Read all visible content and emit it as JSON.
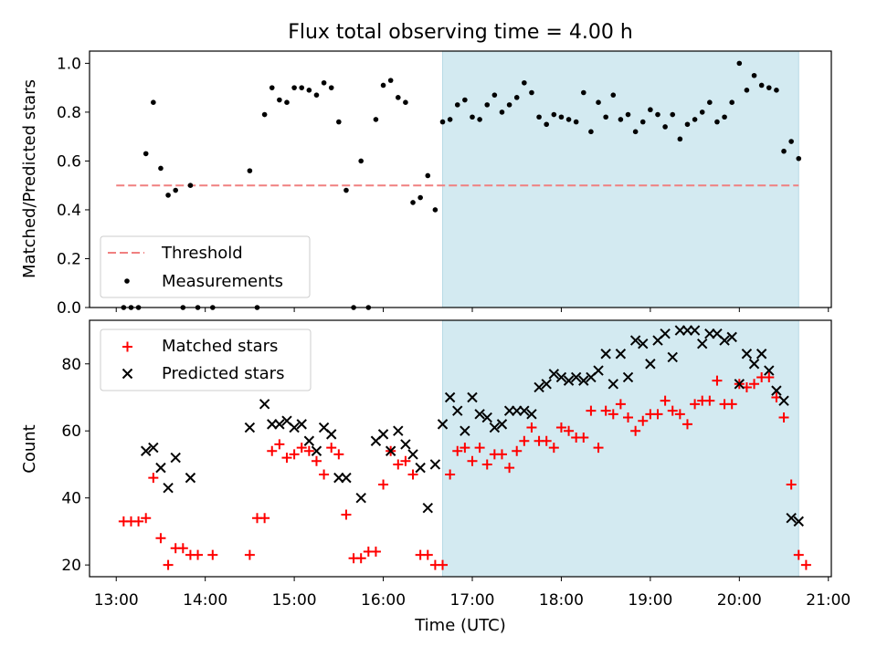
{
  "chart_data": [
    {
      "type": "scatter",
      "title": "Flux total observing time = 4.00 h",
      "xlabel": "",
      "ylabel": "Matched/Predicted stars",
      "xlim": [
        "12:42",
        "21:02"
      ],
      "ylim": [
        0,
        1.05
      ],
      "yticks": [
        "0.0",
        "0.2",
        "0.4",
        "0.6",
        "0.8",
        "1.0"
      ],
      "shaded_region": [
        "16:40",
        "20:40"
      ],
      "shade_color": "#d3eaf1",
      "legend_position": "lower-left",
      "threshold": {
        "name": "Threshold",
        "value": 0.5,
        "color": "#f08080",
        "style": "dashed"
      },
      "series": [
        {
          "name": "Measurements",
          "color": "#000000",
          "marker": "dot",
          "points": [
            [
              "13:05",
              0.0
            ],
            [
              "13:10",
              0.0
            ],
            [
              "13:15",
              0.0
            ],
            [
              "13:20",
              0.63
            ],
            [
              "13:25",
              0.84
            ],
            [
              "13:30",
              0.57
            ],
            [
              "13:35",
              0.46
            ],
            [
              "13:40",
              0.48
            ],
            [
              "13:45",
              0.0
            ],
            [
              "13:50",
              0.5
            ],
            [
              "13:55",
              0.0
            ],
            [
              "14:05",
              0.0
            ],
            [
              "14:30",
              0.56
            ],
            [
              "14:35",
              0.0
            ],
            [
              "14:40",
              0.79
            ],
            [
              "14:45",
              0.9
            ],
            [
              "14:50",
              0.85
            ],
            [
              "14:55",
              0.84
            ],
            [
              "15:00",
              0.9
            ],
            [
              "15:05",
              0.9
            ],
            [
              "15:10",
              0.89
            ],
            [
              "15:15",
              0.87
            ],
            [
              "15:20",
              0.92
            ],
            [
              "15:25",
              0.9
            ],
            [
              "15:30",
              0.76
            ],
            [
              "15:35",
              0.48
            ],
            [
              "15:40",
              0.0
            ],
            [
              "15:45",
              0.6
            ],
            [
              "15:50",
              0.0
            ],
            [
              "15:55",
              0.77
            ],
            [
              "16:00",
              0.91
            ],
            [
              "16:05",
              0.93
            ],
            [
              "16:10",
              0.86
            ],
            [
              "16:15",
              0.84
            ],
            [
              "16:20",
              0.43
            ],
            [
              "16:25",
              0.45
            ],
            [
              "16:30",
              0.54
            ],
            [
              "16:35",
              0.4
            ],
            [
              "16:40",
              0.76
            ],
            [
              "16:45",
              0.77
            ],
            [
              "16:50",
              0.83
            ],
            [
              "16:55",
              0.85
            ],
            [
              "17:00",
              0.78
            ],
            [
              "17:05",
              0.77
            ],
            [
              "17:10",
              0.83
            ],
            [
              "17:15",
              0.87
            ],
            [
              "17:20",
              0.8
            ],
            [
              "17:25",
              0.83
            ],
            [
              "17:30",
              0.86
            ],
            [
              "17:35",
              0.92
            ],
            [
              "17:40",
              0.88
            ],
            [
              "17:45",
              0.78
            ],
            [
              "17:50",
              0.75
            ],
            [
              "17:55",
              0.79
            ],
            [
              "18:00",
              0.78
            ],
            [
              "18:05",
              0.77
            ],
            [
              "18:10",
              0.76
            ],
            [
              "18:15",
              0.88
            ],
            [
              "18:20",
              0.72
            ],
            [
              "18:25",
              0.84
            ],
            [
              "18:30",
              0.78
            ],
            [
              "18:35",
              0.87
            ],
            [
              "18:40",
              0.77
            ],
            [
              "18:45",
              0.79
            ],
            [
              "18:50",
              0.72
            ],
            [
              "18:55",
              0.76
            ],
            [
              "19:00",
              0.81
            ],
            [
              "19:05",
              0.79
            ],
            [
              "19:10",
              0.74
            ],
            [
              "19:15",
              0.79
            ],
            [
              "19:20",
              0.69
            ],
            [
              "19:25",
              0.75
            ],
            [
              "19:30",
              0.77
            ],
            [
              "19:35",
              0.8
            ],
            [
              "19:40",
              0.84
            ],
            [
              "19:45",
              0.76
            ],
            [
              "19:50",
              0.78
            ],
            [
              "19:55",
              0.84
            ],
            [
              "20:00",
              1.0
            ],
            [
              "20:05",
              0.89
            ],
            [
              "20:10",
              0.95
            ],
            [
              "20:15",
              0.91
            ],
            [
              "20:20",
              0.9
            ],
            [
              "20:25",
              0.89
            ],
            [
              "20:30",
              0.64
            ],
            [
              "20:35",
              0.68
            ],
            [
              "20:40",
              0.61
            ]
          ]
        }
      ]
    },
    {
      "type": "scatter",
      "title": "",
      "xlabel": "Time (UTC)",
      "ylabel": "Count",
      "xlim": [
        "12:42",
        "21:02"
      ],
      "ylim": [
        16.5,
        93
      ],
      "yticks": [
        "20",
        "40",
        "60",
        "80"
      ],
      "xticks": [
        "13:00",
        "14:00",
        "15:00",
        "16:00",
        "17:00",
        "18:00",
        "19:00",
        "20:00",
        "21:00"
      ],
      "shaded_region": [
        "16:40",
        "20:40"
      ],
      "shade_color": "#d3eaf1",
      "legend_position": "top-left",
      "series": [
        {
          "name": "Matched stars",
          "color": "#ff0000",
          "marker": "plus",
          "points": [
            [
              "13:05",
              33
            ],
            [
              "13:10",
              33
            ],
            [
              "13:15",
              33
            ],
            [
              "13:20",
              34
            ],
            [
              "13:25",
              46
            ],
            [
              "13:30",
              28
            ],
            [
              "13:35",
              20
            ],
            [
              "13:40",
              25
            ],
            [
              "13:45",
              25
            ],
            [
              "13:50",
              23
            ],
            [
              "13:55",
              23
            ],
            [
              "14:05",
              23
            ],
            [
              "14:30",
              23
            ],
            [
              "14:35",
              34
            ],
            [
              "14:40",
              34
            ],
            [
              "14:45",
              54
            ],
            [
              "14:50",
              56
            ],
            [
              "14:55",
              52
            ],
            [
              "15:00",
              53
            ],
            [
              "15:05",
              55
            ],
            [
              "15:10",
              54
            ],
            [
              "15:15",
              51
            ],
            [
              "15:20",
              47
            ],
            [
              "15:25",
              55
            ],
            [
              "15:30",
              53
            ],
            [
              "15:35",
              35
            ],
            [
              "15:40",
              22
            ],
            [
              "15:45",
              22
            ],
            [
              "15:50",
              24
            ],
            [
              "15:55",
              24
            ],
            [
              "16:00",
              44
            ],
            [
              "16:05",
              54
            ],
            [
              "16:10",
              50
            ],
            [
              "16:15",
              51
            ],
            [
              "16:20",
              47
            ],
            [
              "16:25",
              23
            ],
            [
              "16:30",
              23
            ],
            [
              "16:35",
              20
            ],
            [
              "16:40",
              20
            ],
            [
              "16:45",
              47
            ],
            [
              "16:50",
              54
            ],
            [
              "16:55",
              55
            ],
            [
              "17:00",
              51
            ],
            [
              "17:05",
              55
            ],
            [
              "17:10",
              50
            ],
            [
              "17:15",
              53
            ],
            [
              "17:20",
              53
            ],
            [
              "17:25",
              49
            ],
            [
              "17:30",
              54
            ],
            [
              "17:35",
              57
            ],
            [
              "17:40",
              61
            ],
            [
              "17:45",
              57
            ],
            [
              "17:50",
              57
            ],
            [
              "17:55",
              55
            ],
            [
              "18:00",
              61
            ],
            [
              "18:05",
              60
            ],
            [
              "18:10",
              58
            ],
            [
              "18:15",
              58
            ],
            [
              "18:20",
              66
            ],
            [
              "18:25",
              55
            ],
            [
              "18:30",
              66
            ],
            [
              "18:35",
              65
            ],
            [
              "18:40",
              68
            ],
            [
              "18:45",
              64
            ],
            [
              "18:50",
              60
            ],
            [
              "18:55",
              63
            ],
            [
              "19:00",
              65
            ],
            [
              "19:05",
              65
            ],
            [
              "19:10",
              69
            ],
            [
              "19:15",
              66
            ],
            [
              "19:20",
              65
            ],
            [
              "19:25",
              62
            ],
            [
              "19:30",
              68
            ],
            [
              "19:35",
              69
            ],
            [
              "19:40",
              69
            ],
            [
              "19:45",
              75
            ],
            [
              "19:50",
              68
            ],
            [
              "19:55",
              68
            ],
            [
              "20:00",
              74
            ],
            [
              "20:05",
              73
            ],
            [
              "20:10",
              74
            ],
            [
              "20:15",
              76
            ],
            [
              "20:20",
              76
            ],
            [
              "20:25",
              70
            ],
            [
              "20:30",
              64
            ],
            [
              "20:35",
              44
            ],
            [
              "20:40",
              23
            ],
            [
              "20:45",
              20
            ]
          ]
        },
        {
          "name": "Predicted stars",
          "color": "#000000",
          "marker": "x",
          "points": [
            [
              "13:20",
              54
            ],
            [
              "13:25",
              55
            ],
            [
              "13:30",
              49
            ],
            [
              "13:35",
              43
            ],
            [
              "13:40",
              52
            ],
            [
              "13:50",
              46
            ],
            [
              "14:30",
              61
            ],
            [
              "14:40",
              68
            ],
            [
              "14:45",
              62
            ],
            [
              "14:50",
              62
            ],
            [
              "14:55",
              63
            ],
            [
              "15:00",
              61
            ],
            [
              "15:05",
              62
            ],
            [
              "15:10",
              57
            ],
            [
              "15:15",
              54
            ],
            [
              "15:20",
              61
            ],
            [
              "15:25",
              59
            ],
            [
              "15:30",
              46
            ],
            [
              "15:35",
              46
            ],
            [
              "15:45",
              40
            ],
            [
              "15:55",
              57
            ],
            [
              "16:00",
              59
            ],
            [
              "16:05",
              54
            ],
            [
              "16:10",
              60
            ],
            [
              "16:15",
              56
            ],
            [
              "16:20",
              53
            ],
            [
              "16:25",
              49
            ],
            [
              "16:30",
              37
            ],
            [
              "16:35",
              50
            ],
            [
              "16:40",
              62
            ],
            [
              "16:45",
              70
            ],
            [
              "16:50",
              66
            ],
            [
              "16:55",
              60
            ],
            [
              "17:00",
              70
            ],
            [
              "17:05",
              65
            ],
            [
              "17:10",
              64
            ],
            [
              "17:15",
              61
            ],
            [
              "17:20",
              62
            ],
            [
              "17:25",
              66
            ],
            [
              "17:30",
              66
            ],
            [
              "17:35",
              66
            ],
            [
              "17:40",
              65
            ],
            [
              "17:45",
              73
            ],
            [
              "17:50",
              74
            ],
            [
              "17:55",
              77
            ],
            [
              "18:00",
              76
            ],
            [
              "18:05",
              75
            ],
            [
              "18:10",
              76
            ],
            [
              "18:15",
              75
            ],
            [
              "18:20",
              76
            ],
            [
              "18:25",
              78
            ],
            [
              "18:30",
              83
            ],
            [
              "18:35",
              74
            ],
            [
              "18:40",
              83
            ],
            [
              "18:45",
              76
            ],
            [
              "18:50",
              87
            ],
            [
              "18:55",
              86
            ],
            [
              "19:00",
              80
            ],
            [
              "19:05",
              87
            ],
            [
              "19:10",
              89
            ],
            [
              "19:15",
              82
            ],
            [
              "19:20",
              90
            ],
            [
              "19:25",
              90
            ],
            [
              "19:30",
              90
            ],
            [
              "19:35",
              86
            ],
            [
              "19:40",
              89
            ],
            [
              "19:45",
              89
            ],
            [
              "19:50",
              87
            ],
            [
              "19:55",
              88
            ],
            [
              "20:00",
              74
            ],
            [
              "20:05",
              83
            ],
            [
              "20:10",
              80
            ],
            [
              "20:15",
              83
            ],
            [
              "20:20",
              78
            ],
            [
              "20:25",
              72
            ],
            [
              "20:30",
              69
            ],
            [
              "20:35",
              34
            ],
            [
              "20:40",
              33
            ]
          ]
        }
      ]
    }
  ]
}
